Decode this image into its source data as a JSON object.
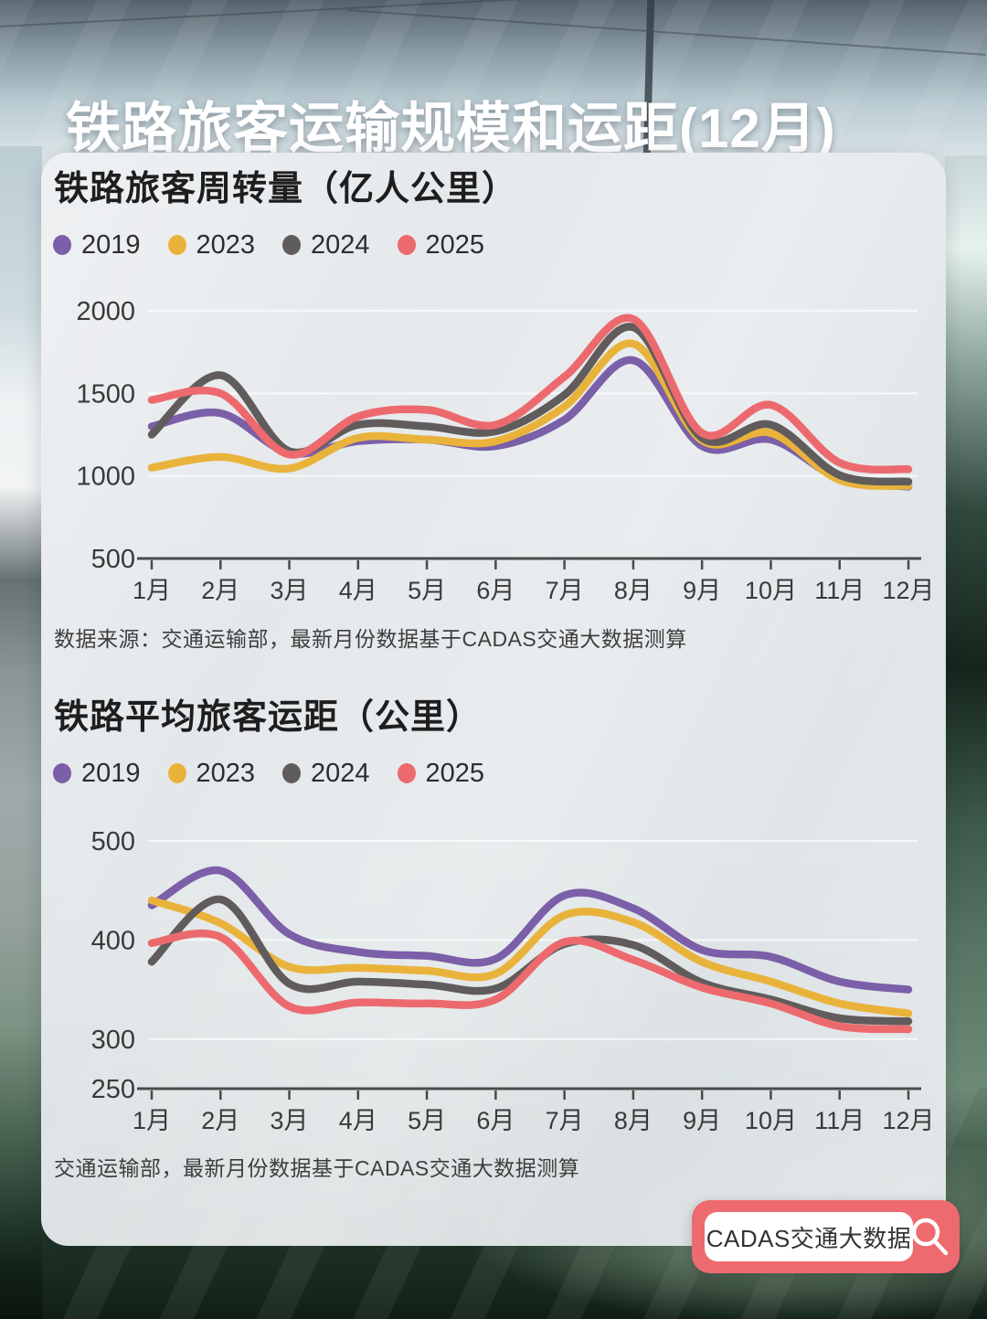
{
  "page": {
    "title": "铁路旅客运输规模和运距(12月)"
  },
  "badge": {
    "label": "CADAS交通大数据",
    "icon": "search-icon",
    "color": "#ED6A6E"
  },
  "style": {
    "grid_color": "rgba(255,255,255,0.7)",
    "axis_color": "#4a4a4a",
    "tick_label_color": "#3a3a3a"
  },
  "chart_data": [
    {
      "type": "line",
      "title": "铁路旅客周转量（亿人公里）",
      "source": "数据来源：交通运输部，最新月份数据基于CADAS交通大数据测算",
      "categories": [
        "1月",
        "2月",
        "3月",
        "4月",
        "5月",
        "6月",
        "7月",
        "8月",
        "9月",
        "10月",
        "11月",
        "12月"
      ],
      "ylim": [
        500,
        2000
      ],
      "yticks": [
        500,
        1000,
        1500,
        2000
      ],
      "grid": true,
      "legend_position": "top",
      "series": [
        {
          "name": "2019",
          "color": "#7B5FA8",
          "values": [
            1300,
            1380,
            1140,
            1210,
            1220,
            1180,
            1340,
            1700,
            1180,
            1220,
            985,
            935
          ]
        },
        {
          "name": "2023",
          "color": "#E9B33B",
          "values": [
            1050,
            1115,
            1045,
            1230,
            1220,
            1210,
            1420,
            1800,
            1215,
            1260,
            975,
            940
          ]
        },
        {
          "name": "2024",
          "color": "#615C5C",
          "values": [
            1250,
            1610,
            1150,
            1310,
            1300,
            1270,
            1490,
            1900,
            1230,
            1310,
            1005,
            965
          ]
        },
        {
          "name": "2025",
          "color": "#EC6A6E",
          "values": [
            1460,
            1500,
            1130,
            1360,
            1400,
            1310,
            1600,
            1950,
            1260,
            1430,
            1080,
            1040
          ]
        }
      ]
    },
    {
      "type": "line",
      "title": "铁路平均旅客运距（公里）",
      "source": "交通运输部，最新月份数据基于CADAS交通大数据测算",
      "categories": [
        "1月",
        "2月",
        "3月",
        "4月",
        "5月",
        "6月",
        "7月",
        "8月",
        "9月",
        "10月",
        "11月",
        "12月"
      ],
      "ylim": [
        250,
        500
      ],
      "yticks": [
        250,
        300,
        400,
        500
      ],
      "grid": true,
      "legend_position": "top",
      "series": [
        {
          "name": "2019",
          "color": "#7B5FA8",
          "values": [
            435,
            470,
            406,
            388,
            384,
            381,
            445,
            432,
            390,
            383,
            358,
            350
          ]
        },
        {
          "name": "2023",
          "color": "#E9B33B",
          "values": [
            440,
            417,
            373,
            372,
            369,
            366,
            425,
            418,
            378,
            358,
            336,
            326
          ]
        },
        {
          "name": "2024",
          "color": "#615C5C",
          "values": [
            378,
            441,
            356,
            358,
            355,
            351,
            396,
            395,
            357,
            340,
            321,
            318
          ]
        },
        {
          "name": "2025",
          "color": "#EC6A6E",
          "values": [
            397,
            403,
            333,
            337,
            336,
            340,
            398,
            380,
            352,
            336,
            313,
            310
          ]
        }
      ]
    }
  ]
}
